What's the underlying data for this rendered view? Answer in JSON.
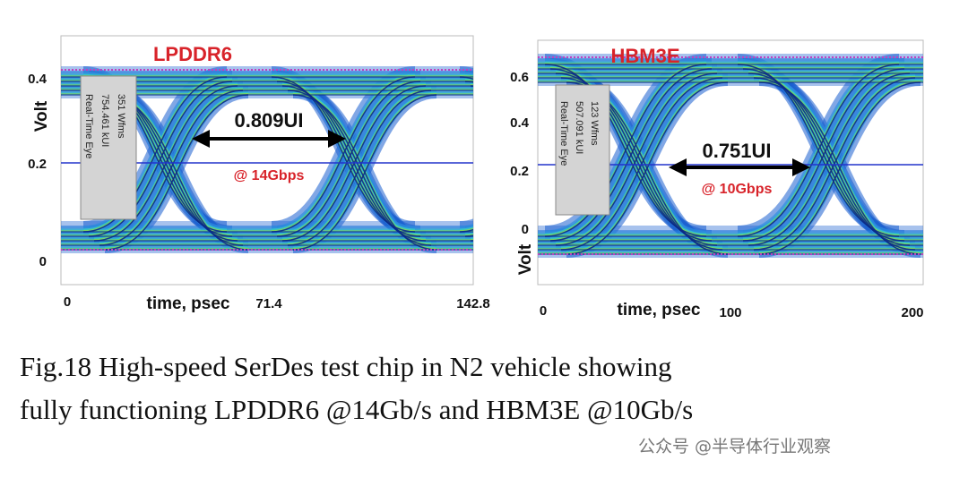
{
  "left_panel": {
    "title": "LPDDR6",
    "y_axis_label": "Volt",
    "x_axis_label": "time, psec",
    "yticks": [
      "0.4",
      "0.2",
      "0"
    ],
    "xticks": [
      "0",
      "71.4",
      "142.8"
    ],
    "info_box": [
      "Real-Time Eye",
      "754.461 kUI",
      "351 Wfms"
    ],
    "eye_width": "0.809UI",
    "data_rate": "@ 14Gbps"
  },
  "right_panel": {
    "title": "HBM3E",
    "y_axis_label": "Volt",
    "x_axis_label": "time, psec",
    "yticks": [
      "0.6",
      "0.4",
      "0.2",
      "0"
    ],
    "xticks": [
      "0",
      "100",
      "200"
    ],
    "info_box": [
      "Real-Time Eye",
      "507.091 kUI",
      "123 Wfms"
    ],
    "eye_width": "0.751UI",
    "data_rate": "@ 10Gbps"
  },
  "caption": [
    "Fig.18  High-speed SerDes test chip in N2 vehicle showing",
    "fully functioning LPDDR6 @14Gb/s and HBM3E @10Gb/s"
  ],
  "watermark": "公众号 @半导体行业观察"
}
